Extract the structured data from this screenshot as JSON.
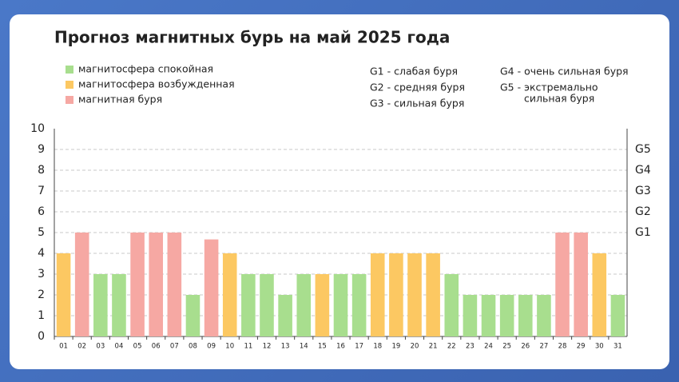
{
  "chart_data": {
    "type": "bar",
    "title": "Прогноз магнитных бурь на май 2025 года",
    "categories": [
      "01",
      "02",
      "03",
      "04",
      "05",
      "06",
      "07",
      "08",
      "09",
      "10",
      "11",
      "12",
      "13",
      "14",
      "15",
      "16",
      "17",
      "18",
      "19",
      "20",
      "21",
      "22",
      "23",
      "24",
      "25",
      "26",
      "27",
      "28",
      "29",
      "30",
      "31"
    ],
    "series": [
      {
        "name": "магнитосфера спокойная",
        "color": "#a8de8e",
        "values": [
          null,
          null,
          3,
          3,
          null,
          null,
          null,
          2,
          null,
          null,
          3,
          3,
          2,
          3,
          null,
          3,
          3,
          null,
          null,
          null,
          null,
          3,
          2,
          2,
          2,
          2,
          2,
          null,
          null,
          null,
          2
        ]
      },
      {
        "name": "магнитосфера возбужденная",
        "color": "#fcc862",
        "values": [
          4,
          null,
          null,
          null,
          null,
          null,
          null,
          null,
          null,
          4,
          null,
          null,
          null,
          null,
          3,
          null,
          null,
          4,
          4,
          4,
          4,
          null,
          null,
          null,
          null,
          null,
          null,
          null,
          null,
          4,
          null
        ]
      },
      {
        "name": "магнитная буря",
        "color": "#f6a8a3",
        "values": [
          null,
          5,
          null,
          null,
          5,
          5,
          5,
          null,
          4.67,
          null,
          null,
          null,
          null,
          null,
          null,
          null,
          null,
          null,
          null,
          null,
          null,
          null,
          null,
          null,
          null,
          null,
          null,
          5,
          5,
          null,
          null
        ]
      }
    ],
    "ylim": [
      0,
      10
    ],
    "yticks": [
      0,
      1,
      2,
      3,
      4,
      5,
      6,
      7,
      8,
      9,
      10
    ],
    "y2lim": [
      0,
      10
    ],
    "y2ticks": [
      {
        "value": 5,
        "label": "G1"
      },
      {
        "value": 6,
        "label": "G2"
      },
      {
        "value": 7,
        "label": "G3"
      },
      {
        "value": 8,
        "label": "G4"
      },
      {
        "value": 9,
        "label": "G5"
      }
    ],
    "annotations": [
      "G1 - слабая буря",
      "G2 - средняя буря",
      "G3 - сильная буря",
      "G4 - очень сильная буря",
      "G5 - экстремально",
      "сильная буря"
    ],
    "grid": true
  }
}
